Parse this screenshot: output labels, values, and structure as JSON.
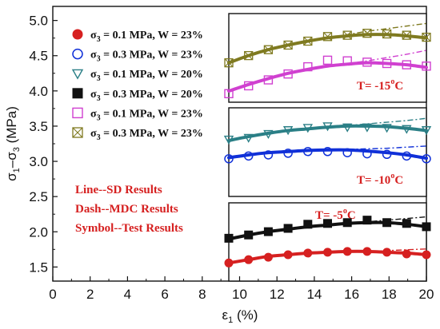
{
  "chart_data": {
    "type": "line",
    "xlabel_main": "ε",
    "xlabel_sub": "1",
    "xlabel_unit": " (%)",
    "ylabel_main": "σ",
    "ylabel_sub1": "1",
    "ylabel_mid": "–σ",
    "ylabel_sub2": "3",
    "ylabel_unit": " (MPa)",
    "xlim": [
      0,
      20
    ],
    "ylim": [
      1.3,
      5.2
    ],
    "xticks": [
      0,
      2,
      4,
      6,
      8,
      10,
      12,
      14,
      16,
      18,
      20
    ],
    "yticks": [
      1.5,
      2.0,
      2.5,
      3.0,
      3.5,
      4.0,
      4.5,
      5.0
    ],
    "grid": false,
    "legend": [
      {
        "sym": "σ",
        "sub": "3",
        "text": " = 0.1 MPa, W = 23%",
        "marker": "circle-filled",
        "color": "#d62020"
      },
      {
        "sym": "σ",
        "sub": "3",
        "text": " = 0.3 MPa, W = 23%",
        "marker": "circle-open",
        "color": "#1030d8"
      },
      {
        "sym": "σ",
        "sub": "3",
        "text": " = 0.1 MPa, W = 20%",
        "marker": "triangle-down-open",
        "color": "#2a7f86"
      },
      {
        "sym": "σ",
        "sub": "3",
        "text": " = 0.3 MPa, W = 20%",
        "marker": "square-filled",
        "color": "#111111"
      },
      {
        "sym": "σ",
        "sub": "3",
        "text": " = 0.1 MPa, W = 23%",
        "marker": "square-open",
        "color": "#d040d0"
      },
      {
        "sym": "σ",
        "sub": "3",
        "text": " = 0.3 MPa, W = 23%",
        "marker": "square-x-open",
        "color": "#7f7a20"
      }
    ],
    "notes": [
      "Line--SD Results",
      "Dash--MDC Results",
      "Symbol--Test Results"
    ],
    "panels": [
      {
        "temp_prefix": "T= -15",
        "temp_sup": "o",
        "temp_suffix": "C",
        "ylim": [
          3.85,
          5.2
        ]
      },
      {
        "temp_prefix": "T= -10",
        "temp_sup": "o",
        "temp_suffix": "C",
        "ylim": [
          2.25,
          3.85
        ]
      },
      {
        "temp_prefix": "T= -5",
        "temp_sup": "o",
        "temp_suffix": "C",
        "ylim": [
          1.3,
          2.25
        ]
      }
    ],
    "series": [
      {
        "panel": 2,
        "marker": "circle-filled",
        "color": "#d62020",
        "x": [
          10,
          11,
          12,
          13,
          14,
          15,
          16,
          17,
          18,
          19,
          20
        ],
        "y": [
          1.52,
          1.56,
          1.59,
          1.62,
          1.64,
          1.65,
          1.66,
          1.66,
          1.65,
          1.63,
          1.62
        ],
        "fit_sd": [
          1.52,
          1.56,
          1.6,
          1.62,
          1.64,
          1.65,
          1.66,
          1.66,
          1.65,
          1.64,
          1.62
        ],
        "fit_mdc": [
          1.52,
          1.56,
          1.6,
          1.62,
          1.64,
          1.65,
          1.66,
          1.66,
          1.67,
          1.68,
          1.69
        ]
      },
      {
        "panel": 1,
        "marker": "circle-open",
        "color": "#1030d8",
        "x": [
          10,
          11,
          12,
          13,
          14,
          15,
          16,
          17,
          18,
          19,
          20
        ],
        "y": [
          2.93,
          2.98,
          3.0,
          3.03,
          3.06,
          3.06,
          3.04,
          3.02,
          3.01,
          2.98,
          2.93
        ],
        "fit_sd": [
          2.95,
          3.0,
          3.04,
          3.06,
          3.08,
          3.09,
          3.09,
          3.07,
          3.04,
          3.0,
          2.94
        ],
        "fit_mdc": [
          2.95,
          3.0,
          3.04,
          3.06,
          3.08,
          3.09,
          3.1,
          3.11,
          3.12,
          3.14,
          3.16
        ]
      },
      {
        "panel": 1,
        "marker": "triangle-down-open",
        "color": "#2a7f86",
        "x": [
          10,
          11,
          12,
          13,
          14,
          15,
          16,
          17,
          18,
          19,
          20
        ],
        "y": [
          3.28,
          3.31,
          3.38,
          3.45,
          3.49,
          3.52,
          3.5,
          3.5,
          3.49,
          3.47,
          3.45
        ],
        "fit_sd": [
          3.26,
          3.33,
          3.39,
          3.44,
          3.47,
          3.5,
          3.52,
          3.52,
          3.51,
          3.48,
          3.44
        ],
        "fit_mdc": [
          3.26,
          3.33,
          3.39,
          3.44,
          3.47,
          3.5,
          3.53,
          3.56,
          3.59,
          3.62,
          3.66
        ]
      },
      {
        "panel": 2,
        "marker": "square-filled",
        "color": "#111111",
        "x": [
          10,
          11,
          12,
          13,
          14,
          15,
          16,
          17,
          18,
          19,
          20
        ],
        "y": [
          1.82,
          1.86,
          1.9,
          1.94,
          1.99,
          2.0,
          2.01,
          2.04,
          2.01,
          2.0,
          1.96
        ],
        "fit_sd": [
          1.81,
          1.86,
          1.9,
          1.93,
          1.96,
          1.98,
          2.0,
          2.01,
          2.01,
          1.99,
          1.96
        ],
        "fit_mdc": [
          1.81,
          1.86,
          1.9,
          1.93,
          1.96,
          1.98,
          2.0,
          2.02,
          2.04,
          2.06,
          2.08
        ]
      },
      {
        "panel": 0,
        "marker": "square-open",
        "color": "#d040d0",
        "x": [
          10,
          11,
          12,
          13,
          14,
          15,
          16,
          17,
          18,
          19,
          20
        ],
        "y": [
          3.98,
          4.1,
          4.19,
          4.28,
          4.39,
          4.49,
          4.48,
          4.46,
          4.44,
          4.42,
          4.4
        ],
        "fit_sd": [
          4.02,
          4.12,
          4.21,
          4.29,
          4.35,
          4.4,
          4.43,
          4.45,
          4.44,
          4.42,
          4.38
        ],
        "fit_mdc": [
          4.02,
          4.12,
          4.21,
          4.29,
          4.35,
          4.4,
          4.44,
          4.48,
          4.53,
          4.58,
          4.64
        ]
      },
      {
        "panel": 0,
        "marker": "square-x-open",
        "color": "#7f7a20",
        "x": [
          10,
          11,
          12,
          13,
          14,
          15,
          16,
          17,
          18,
          19,
          20
        ],
        "y": [
          4.45,
          4.56,
          4.65,
          4.72,
          4.78,
          4.85,
          4.87,
          4.9,
          4.89,
          4.87,
          4.84
        ],
        "fit_sd": [
          4.45,
          4.56,
          4.65,
          4.72,
          4.78,
          4.83,
          4.86,
          4.88,
          4.88,
          4.86,
          4.83
        ],
        "fit_mdc": [
          4.45,
          4.56,
          4.65,
          4.72,
          4.78,
          4.83,
          4.88,
          4.93,
          4.97,
          5.01,
          5.05
        ]
      }
    ]
  }
}
